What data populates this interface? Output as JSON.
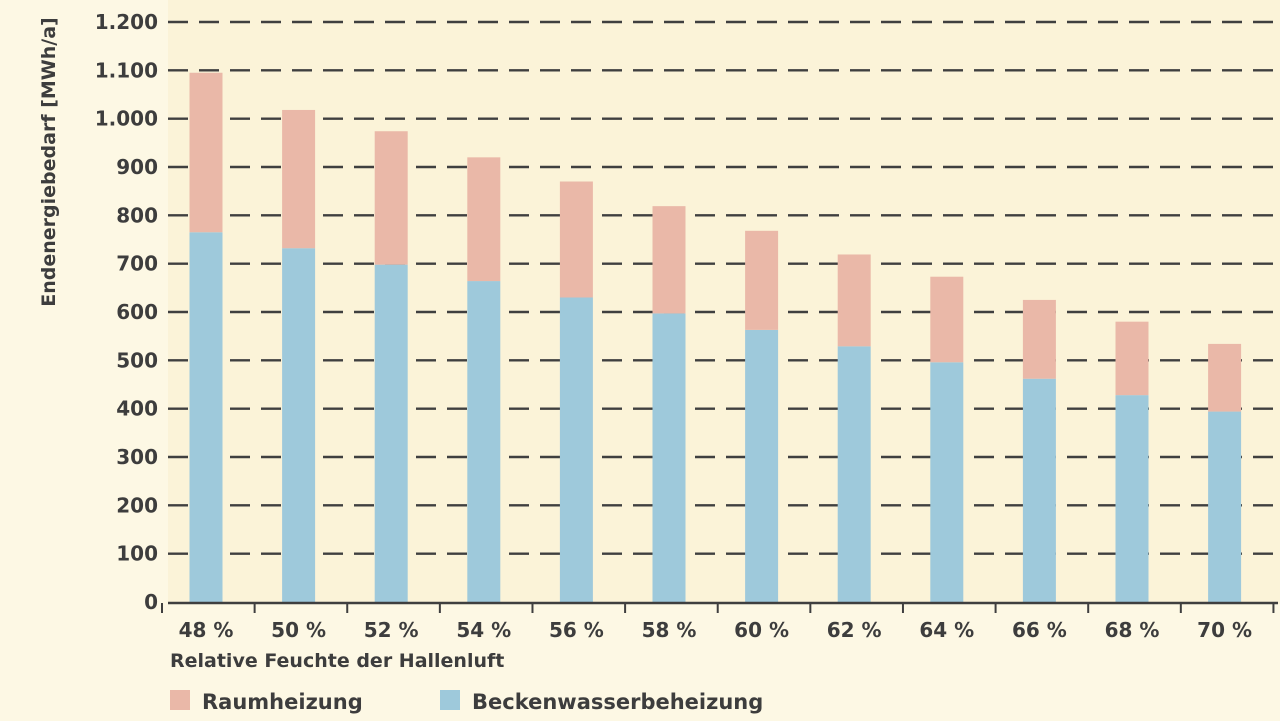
{
  "chart_data": {
    "type": "bar",
    "stacked": true,
    "title": "",
    "xlabel": "Relative Feuchte der Hallenluft",
    "ylabel": "Endenergiebedarf [MWh/a]",
    "ylim": [
      0,
      1200
    ],
    "yticks": [
      0,
      100,
      200,
      300,
      400,
      500,
      600,
      700,
      800,
      900,
      1000,
      1100,
      1200
    ],
    "ytick_labels": [
      "0",
      "100",
      "200",
      "300",
      "400",
      "500",
      "600",
      "700",
      "800",
      "900",
      "1.000",
      "1.100",
      "1.200"
    ],
    "grid": "horizontal-dashed",
    "legend_position": "bottom-left",
    "categories": [
      "48 %",
      "50 %",
      "52 %",
      "54 %",
      "56 %",
      "58 %",
      "60 %",
      "62 %",
      "64 %",
      "66 %",
      "68 %",
      "70 %"
    ],
    "series": [
      {
        "name": "Beckenwasserbeheizung",
        "color": "#9ec9db",
        "values": [
          765,
          732,
          698,
          664,
          630,
          597,
          563,
          529,
          496,
          462,
          428,
          394
        ]
      },
      {
        "name": "Raumheizung",
        "color": "#eab8a8",
        "values": [
          330,
          286,
          276,
          256,
          240,
          222,
          205,
          190,
          177,
          163,
          152,
          140
        ]
      }
    ],
    "legend_order": [
      "Raumheizung",
      "Beckenwasserbeheizung"
    ]
  }
}
